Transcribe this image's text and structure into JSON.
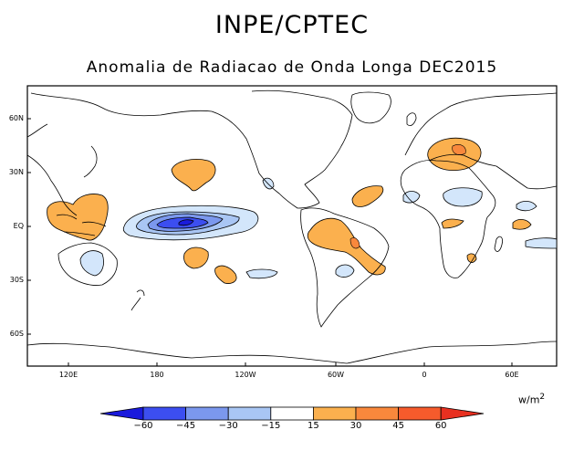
{
  "header": {
    "title": "INPE/CPTEC",
    "subtitle": "Anomalia de Radiacao de Onda Longa DEC2015"
  },
  "map": {
    "latitude_labels": [
      "60N",
      "30N",
      "EQ",
      "30S",
      "60S"
    ],
    "longitude_labels": [
      "120E",
      "180",
      "120W",
      "60W",
      "0",
      "60E"
    ]
  },
  "legend": {
    "units": "w/m",
    "units_exponent": "2",
    "levels": [
      "−60",
      "−45",
      "−30",
      "−15",
      "15",
      "30",
      "45",
      "60"
    ],
    "colors": [
      "#1a1adc",
      "#3c4ef0",
      "#7b98ee",
      "#a9c6f4",
      "#d3e6fb",
      "#ffffff",
      "#fbb04e",
      "#f9883c",
      "#f65b2c",
      "#e83020"
    ]
  },
  "colors": {
    "positive_anomaly": "#fbb04e",
    "strong_positive": "#f9883c",
    "negative_weak": "#d3e6fb",
    "negative_moderate": "#a9c6f4",
    "negative_strong": "#7b98ee",
    "negative_very_strong": "#3c4ef0",
    "coastline": "#000000"
  }
}
